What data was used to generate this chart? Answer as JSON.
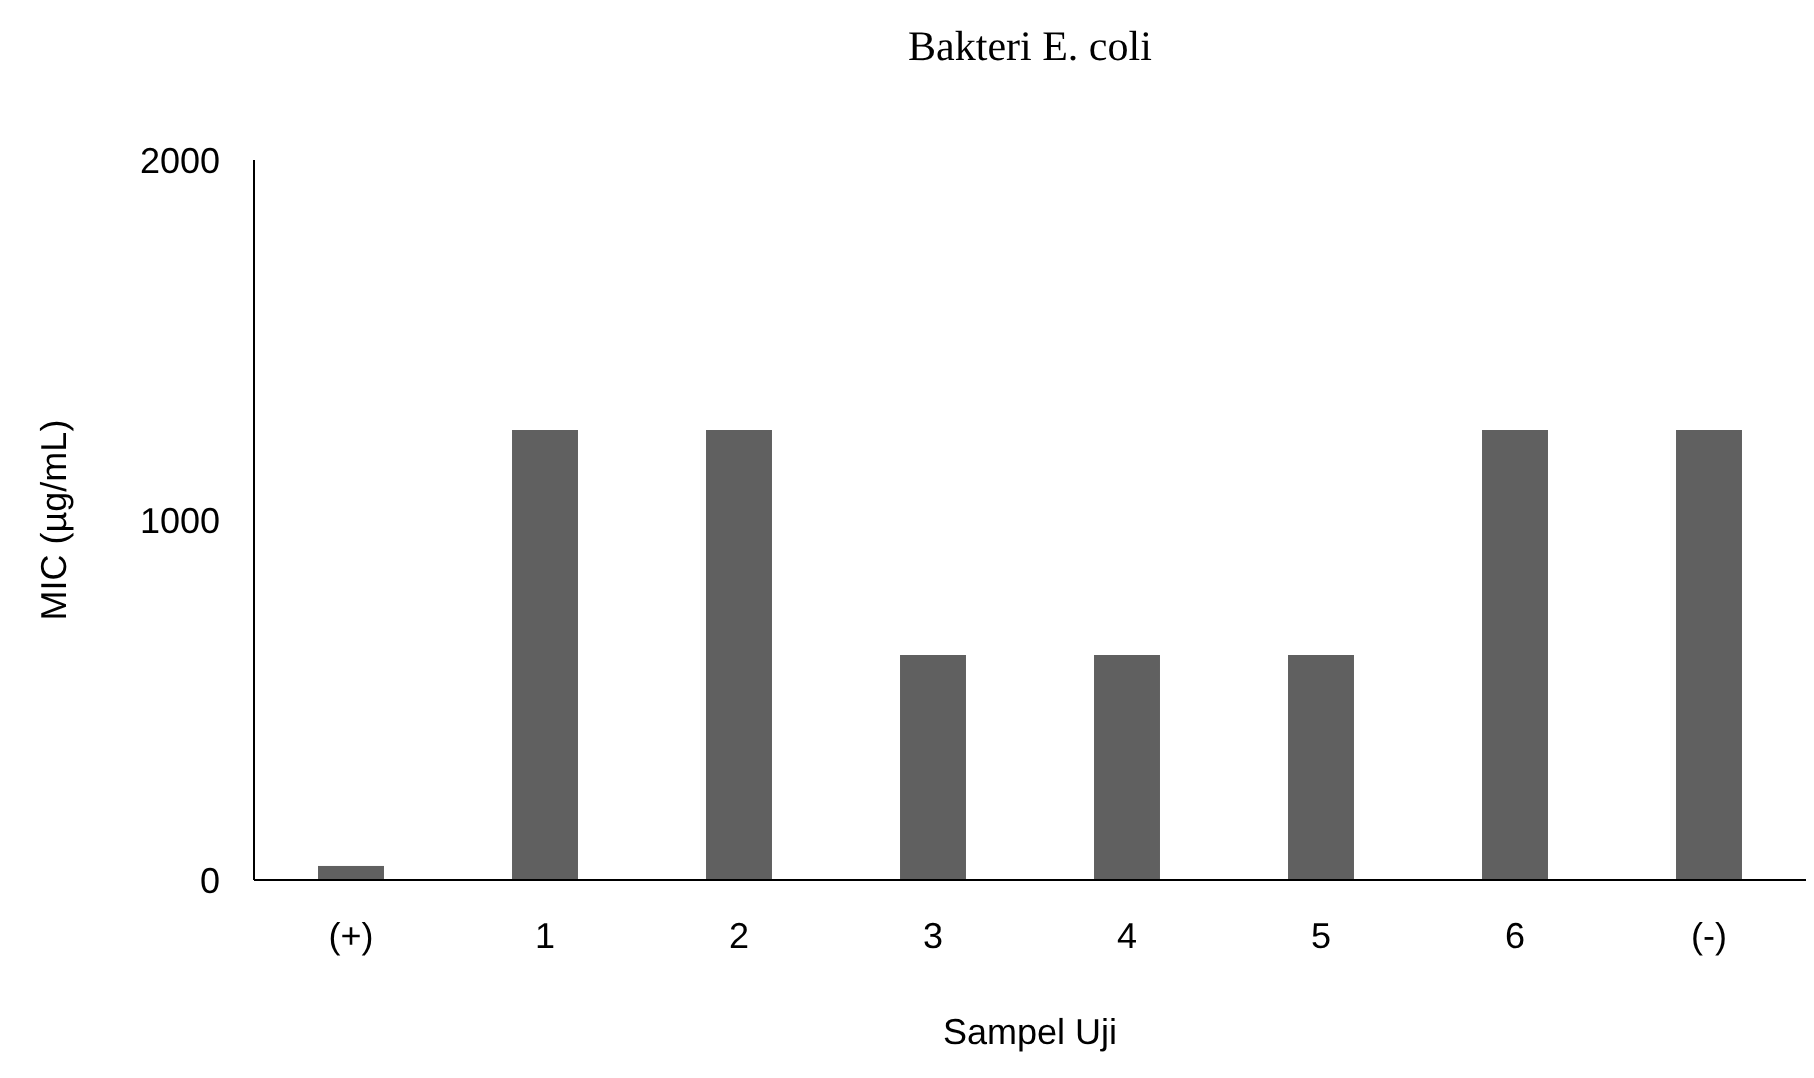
{
  "chart_data": {
    "type": "bar",
    "title": "Bakteri E. coli",
    "xlabel": "Sampel Uji",
    "ylabel": "MIC (µg/mL)",
    "categories": [
      "(+)",
      "1",
      "2",
      "3",
      "4",
      "5",
      "6",
      "(-)"
    ],
    "values": [
      39,
      1250,
      1250,
      625,
      625,
      625,
      1250,
      1250
    ],
    "color": "#606060",
    "ylim": [
      0,
      2000
    ],
    "yticks": [
      0,
      1000,
      2000
    ],
    "grid": false
  }
}
